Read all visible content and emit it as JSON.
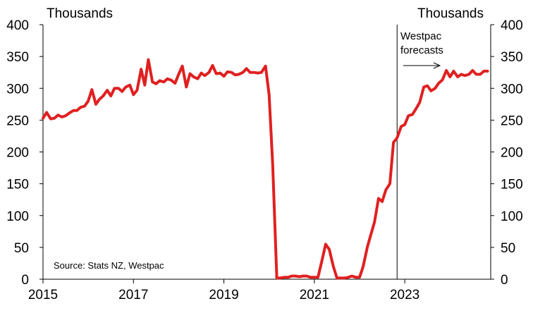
{
  "chart_data": {
    "type": "line",
    "left_unit_label": "Thousands",
    "right_unit_label": "Thousands",
    "ylim": [
      0,
      400
    ],
    "y_ticks": [
      0,
      50,
      100,
      150,
      200,
      250,
      300,
      350,
      400
    ],
    "y_tick_labels": [
      "0",
      "50",
      "100",
      "150",
      "200",
      "250",
      "300",
      "350",
      "400"
    ],
    "xlim": [
      2015.0,
      2024.9
    ],
    "x_ticks": [
      2015,
      2017,
      2019,
      2021,
      2023
    ],
    "x_tick_labels": [
      "2015",
      "2017",
      "2019",
      "2021",
      "2023"
    ],
    "source_note": "Source: Stats NZ, Westpac",
    "forecast_line_x": 2022.83,
    "forecast_annotation": [
      "Westpac",
      "forecasts"
    ],
    "grid": false,
    "line_color": "#e02020",
    "series": [
      {
        "x": [
          2015.0,
          2015.08,
          2015.17,
          2015.25,
          2015.33,
          2015.42,
          2015.5,
          2015.58,
          2015.67,
          2015.75,
          2015.83,
          2015.92,
          2016.0,
          2016.08,
          2016.17,
          2016.25,
          2016.33,
          2016.42,
          2016.5,
          2016.58,
          2016.67,
          2016.75,
          2016.83,
          2016.92,
          2017.0,
          2017.08,
          2017.17,
          2017.25,
          2017.33,
          2017.42,
          2017.5,
          2017.58,
          2017.67,
          2017.75,
          2017.83,
          2017.92,
          2018.0,
          2018.08,
          2018.17,
          2018.25,
          2018.33,
          2018.42,
          2018.5,
          2018.58,
          2018.67,
          2018.75,
          2018.83,
          2018.92,
          2019.0,
          2019.08,
          2019.17,
          2019.25,
          2019.33,
          2019.42,
          2019.5,
          2019.58,
          2019.67,
          2019.75,
          2019.83,
          2019.92,
          2020.0,
          2020.08,
          2020.17,
          2020.25,
          2020.33,
          2020.42,
          2020.5,
          2020.58,
          2020.67,
          2020.75,
          2020.83,
          2020.92,
          2021.0,
          2021.08,
          2021.17,
          2021.25,
          2021.33,
          2021.42,
          2021.5,
          2021.58,
          2021.67,
          2021.75,
          2021.83,
          2021.92,
          2022.0,
          2022.08,
          2022.17,
          2022.25,
          2022.33,
          2022.42,
          2022.5,
          2022.58,
          2022.67,
          2022.75,
          2022.83,
          2022.92,
          2023.0,
          2023.08,
          2023.17,
          2023.25,
          2023.33,
          2023.42,
          2023.5,
          2023.58,
          2023.67,
          2023.75,
          2023.83,
          2023.92,
          2024.0,
          2024.08,
          2024.17,
          2024.25,
          2024.33,
          2024.42,
          2024.5,
          2024.58,
          2024.67,
          2024.75,
          2024.83
        ],
        "values": [
          253,
          262,
          252,
          253,
          258,
          255,
          257,
          261,
          265,
          265,
          270,
          272,
          280,
          298,
          275,
          283,
          288,
          297,
          288,
          300,
          300,
          295,
          302,
          305,
          290,
          297,
          330,
          305,
          345,
          310,
          307,
          312,
          310,
          315,
          313,
          308,
          322,
          335,
          302,
          323,
          318,
          315,
          324,
          320,
          325,
          336,
          323,
          324,
          319,
          326,
          325,
          321,
          322,
          325,
          331,
          325,
          325,
          324,
          325,
          335,
          290,
          180,
          2,
          2,
          3,
          3,
          5,
          5,
          4,
          5,
          5,
          3,
          3,
          3,
          30,
          55,
          47,
          20,
          2,
          2,
          2,
          3,
          5,
          3,
          3,
          20,
          50,
          70,
          90,
          127,
          122,
          140,
          150,
          215,
          222,
          240,
          243,
          257,
          259,
          268,
          278,
          302,
          304,
          296,
          300,
          308,
          313,
          328,
          318,
          327,
          318,
          322,
          320,
          322,
          328,
          322,
          322,
          327,
          327
        ]
      }
    ]
  }
}
